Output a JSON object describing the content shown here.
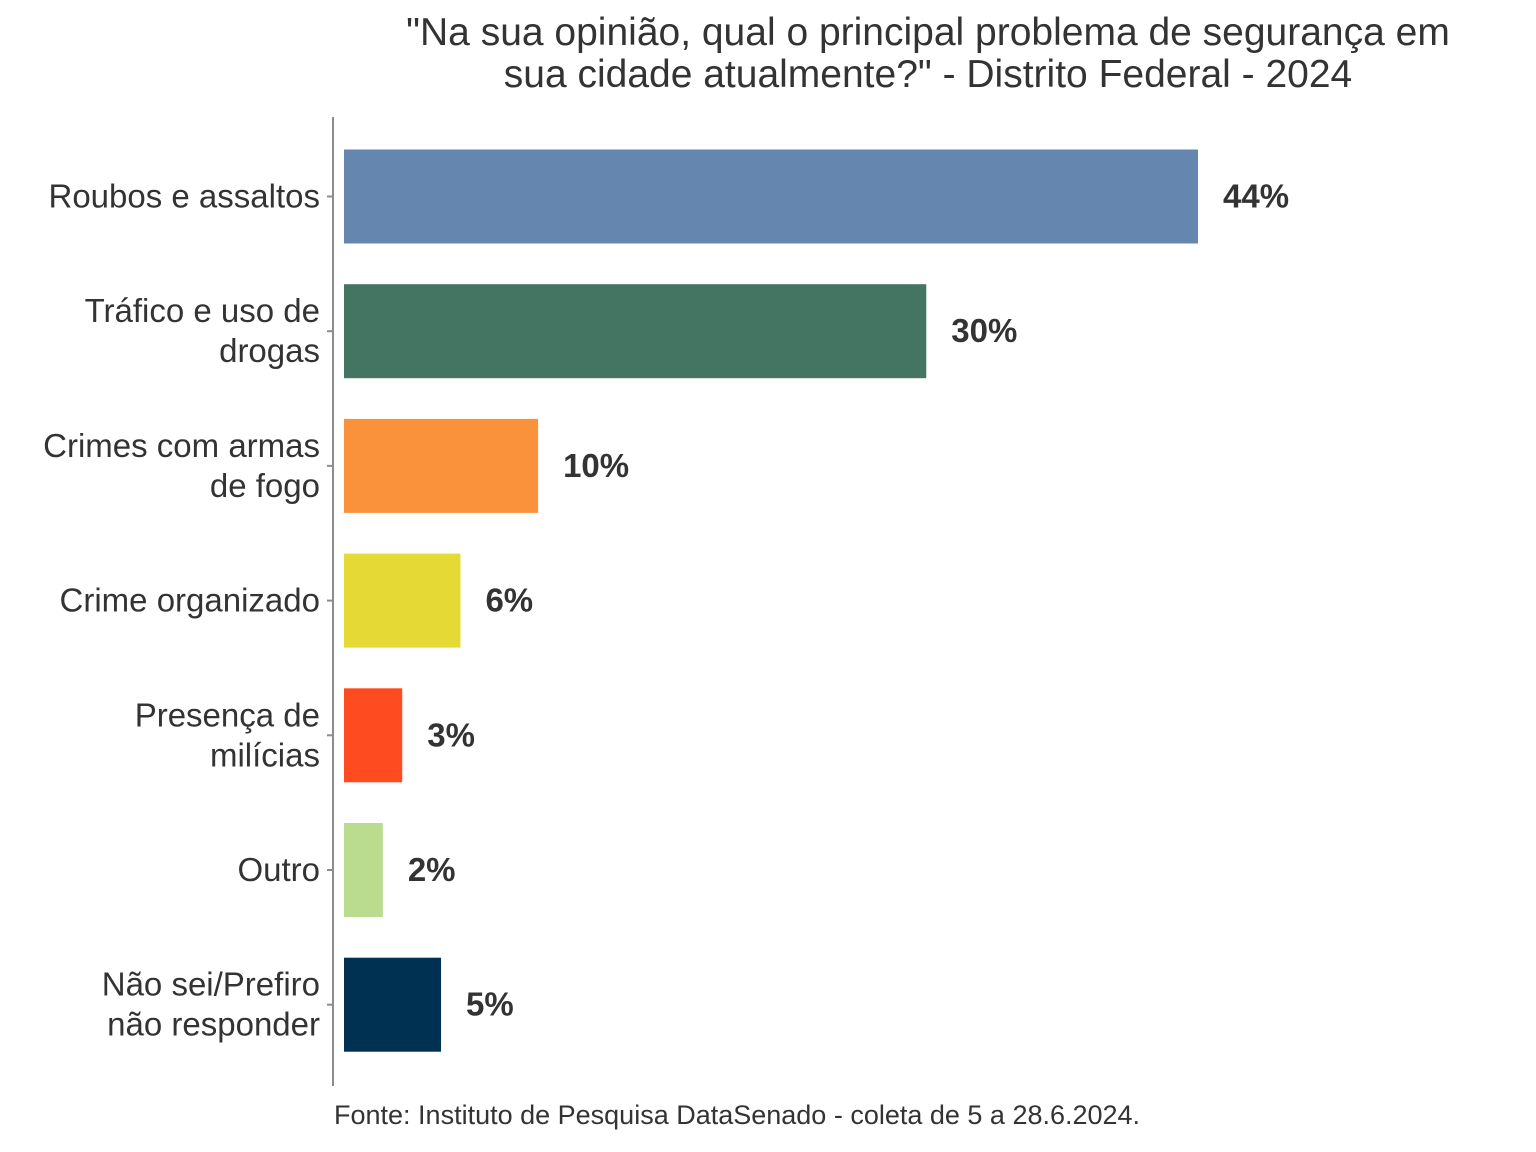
{
  "chart_data": {
    "type": "bar",
    "orientation": "horizontal",
    "title": "\"Na sua opinião, qual o principal problema de segurança em sua cidade atualmente?\" - Distrito Federal - 2024",
    "title_lines": [
      "\"Na sua opinião, qual o principal problema de segurança em",
      "sua cidade atualmente?\" - Distrito Federal - 2024"
    ],
    "categories": [
      "Roubos e assaltos",
      "Tráfico e uso de drogas",
      "Crimes com armas de fogo",
      "Crime organizado",
      "Presença de milícias",
      "Outro",
      "Não sei/Prefiro não responder"
    ],
    "category_label_lines": [
      [
        "Roubos e assaltos"
      ],
      [
        "Tráfico e uso de",
        "drogas"
      ],
      [
        "Crimes com armas",
        "de fogo"
      ],
      [
        "Crime organizado"
      ],
      [
        "Presença de",
        "milícias"
      ],
      [
        "Outro"
      ],
      [
        "Não sei/Prefiro",
        "não responder"
      ]
    ],
    "values": [
      44,
      30,
      10,
      6,
      3,
      2,
      5
    ],
    "data_labels": [
      "44%",
      "30%",
      "10%",
      "6%",
      "3%",
      "2%",
      "5%"
    ],
    "colors": [
      "#6587AF",
      "#447462",
      "#FA923C",
      "#E5D935",
      "#FF4B20",
      "#B9DC8F",
      "#003052"
    ],
    "unit": "%",
    "xlabel": "",
    "ylabel": "",
    "xlim": [
      0,
      50
    ],
    "grid": false,
    "legend": "none",
    "source": "Fonte: Instituto de Pesquisa DataSenado - coleta de 5 a 28.6.2024."
  },
  "colors": {
    "text": "#333333",
    "axis": "#8C8C8C",
    "background": "#FFFFFF"
  }
}
